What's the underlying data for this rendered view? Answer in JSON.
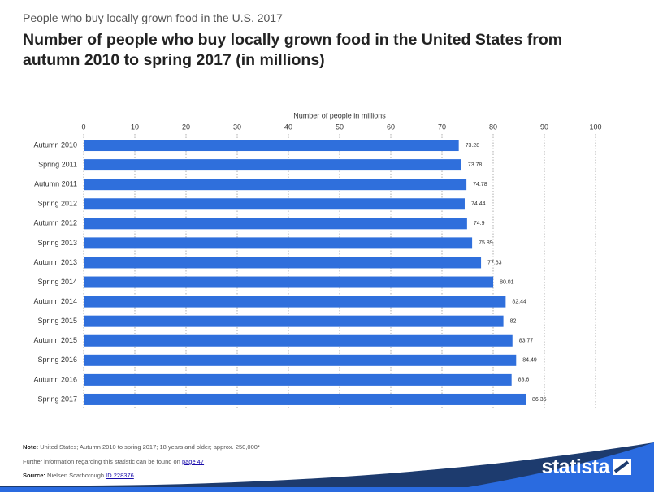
{
  "chart_data": {
    "type": "bar",
    "orientation": "horizontal",
    "supertitle": "People who buy locally grown food in the U.S. 2017",
    "title": "Number of people who buy locally grown food in the United States from autumn 2010 to spring 2017 (in millions)",
    "x_label": "Number of people in millions",
    "categories": [
      "Autumn 2010",
      "Spring 2011",
      "Autumn 2011",
      "Spring 2012",
      "Autumn 2012",
      "Spring 2013",
      "Autumn 2013",
      "Spring 2014",
      "Autumn 2014",
      "Spring 2015",
      "Autumn 2015",
      "Spring 2016",
      "Autumn 2016",
      "Spring 2017"
    ],
    "values": [
      73.28,
      73.78,
      74.78,
      74.44,
      74.9,
      75.89,
      77.63,
      80.01,
      82.44,
      82,
      83.77,
      84.49,
      83.6,
      86.35
    ],
    "xlim": [
      0,
      100
    ],
    "xticks": [
      0,
      10,
      20,
      30,
      40,
      50,
      60,
      70,
      80,
      90,
      100
    ],
    "color": "#2f6fdc",
    "grid": true
  },
  "footer": {
    "note_label": "Note:",
    "note": "United States; Autumn 2010 to spring 2017; 18 years and older; approx. 250,000*",
    "further": "Further information regarding this statistic can be found on",
    "further_link": "page 47",
    "source_label": "Source:",
    "source": "Nielsen Scarborough",
    "source_link": "ID 228376",
    "brand": "statista"
  }
}
